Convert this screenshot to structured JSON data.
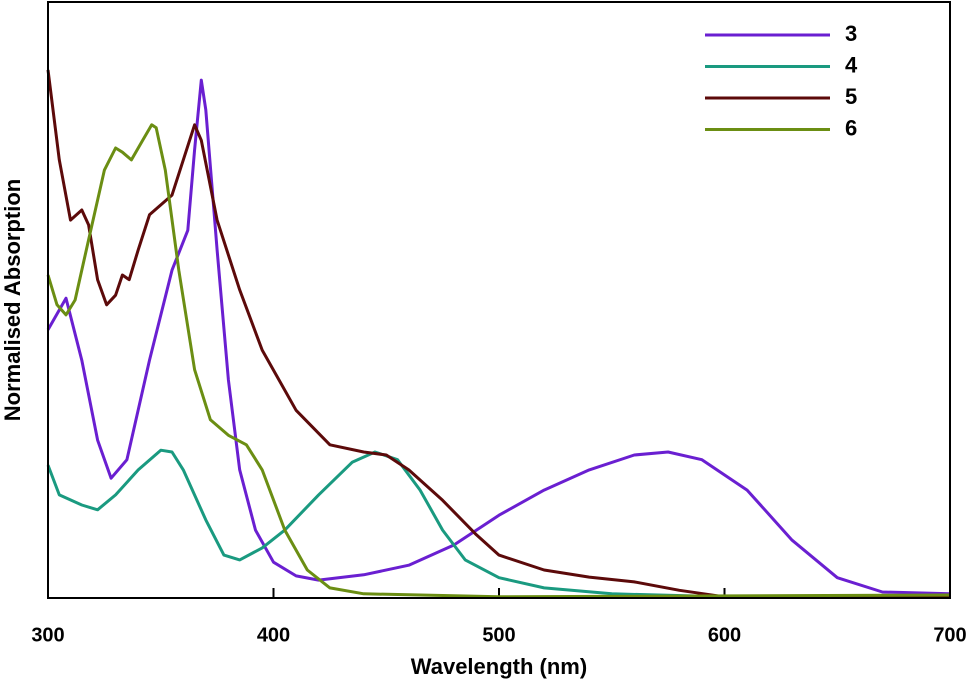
{
  "chart_data": {
    "type": "line",
    "x_label": "Wavelength (nm)",
    "y_label": "Normalised Absorption",
    "xlim": [
      300,
      700
    ],
    "ylim": [
      0,
      1
    ],
    "xticks": [
      300,
      400,
      500,
      600,
      700
    ],
    "legend": "top-right",
    "series": [
      {
        "name": "3",
        "color": "#6a1fd1",
        "x": [
          300,
          308,
          315,
          322,
          328,
          335,
          345,
          355,
          362,
          365,
          368,
          370,
          375,
          380,
          385,
          392,
          400,
          410,
          420,
          440,
          460,
          480,
          500,
          520,
          540,
          560,
          575,
          590,
          610,
          630,
          650,
          670,
          700
        ],
        "values": [
          0.45,
          0.503,
          0.399,
          0.265,
          0.201,
          0.232,
          0.399,
          0.55,
          0.617,
          0.752,
          0.869,
          0.819,
          0.584,
          0.366,
          0.215,
          0.114,
          0.06,
          0.037,
          0.03,
          0.039,
          0.055,
          0.089,
          0.139,
          0.181,
          0.215,
          0.24,
          0.245,
          0.232,
          0.181,
          0.097,
          0.034,
          0.01,
          0.007
        ]
      },
      {
        "name": "4",
        "color": "#1a9a80",
        "x": [
          300,
          305,
          315,
          322,
          330,
          340,
          350,
          355,
          360,
          370,
          378,
          385,
          395,
          405,
          420,
          435,
          445,
          455,
          465,
          475,
          485,
          500,
          520,
          550,
          600,
          700
        ],
        "values": [
          0.223,
          0.173,
          0.156,
          0.148,
          0.173,
          0.215,
          0.248,
          0.245,
          0.215,
          0.131,
          0.072,
          0.064,
          0.084,
          0.114,
          0.173,
          0.228,
          0.245,
          0.232,
          0.181,
          0.114,
          0.064,
          0.034,
          0.017,
          0.007,
          0.002,
          0.002
        ]
      },
      {
        "name": "5",
        "color": "#5c0a0a",
        "x": [
          300,
          305,
          310,
          315,
          318,
          322,
          326,
          330,
          333,
          336,
          340,
          345,
          355,
          360,
          365,
          368,
          375,
          385,
          395,
          410,
          425,
          440,
          450,
          460,
          475,
          490,
          500,
          520,
          540,
          560,
          580,
          600,
          700
        ],
        "values": [
          0.886,
          0.735,
          0.634,
          0.651,
          0.626,
          0.534,
          0.492,
          0.508,
          0.542,
          0.534,
          0.584,
          0.643,
          0.676,
          0.735,
          0.794,
          0.768,
          0.634,
          0.517,
          0.416,
          0.315,
          0.257,
          0.245,
          0.24,
          0.215,
          0.164,
          0.106,
          0.072,
          0.047,
          0.035,
          0.027,
          0.013,
          0.002,
          0.002
        ]
      },
      {
        "name": "6",
        "color": "#6b8e13",
        "x": [
          300,
          304,
          308,
          312,
          318,
          325,
          330,
          333,
          337,
          342,
          346,
          348,
          352,
          358,
          365,
          372,
          380,
          388,
          395,
          405,
          415,
          425,
          440,
          500,
          700
        ],
        "values": [
          0.542,
          0.492,
          0.475,
          0.5,
          0.601,
          0.718,
          0.755,
          0.748,
          0.735,
          0.768,
          0.794,
          0.789,
          0.718,
          0.55,
          0.383,
          0.299,
          0.273,
          0.257,
          0.215,
          0.114,
          0.047,
          0.017,
          0.007,
          0.002,
          0.005
        ]
      }
    ]
  }
}
